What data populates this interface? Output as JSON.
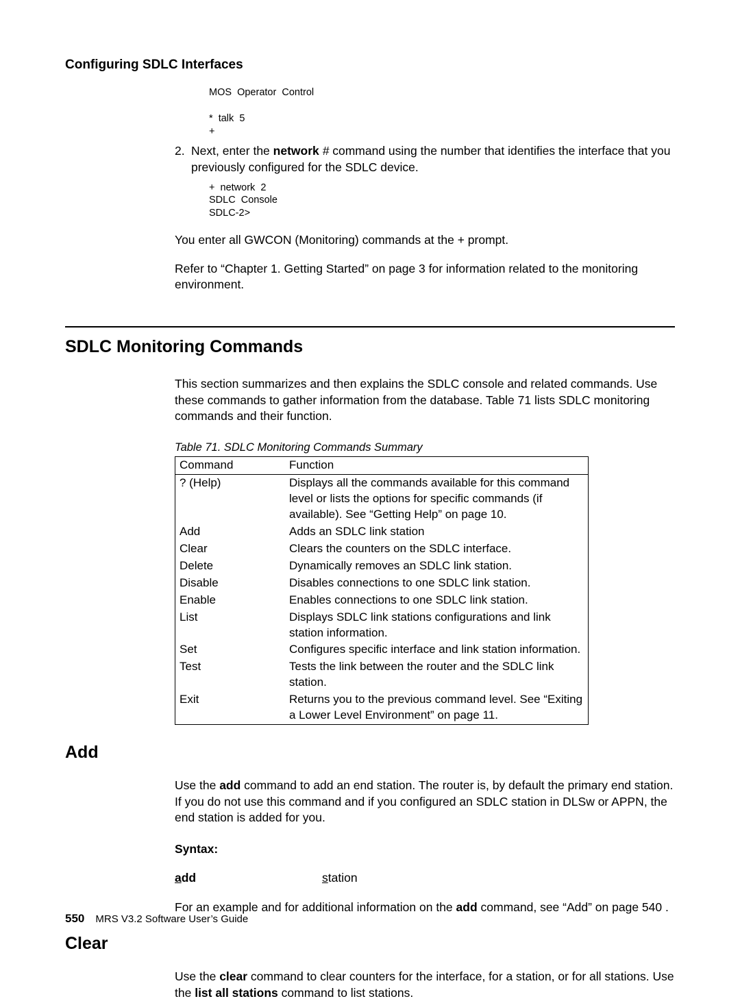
{
  "header": {
    "title": "Configuring SDLC Interfaces"
  },
  "intro": {
    "pre1": "MOS  Operator  Control\n\n*  talk  5\n+",
    "step_num": "2.",
    "step_text_a": "Next, enter the ",
    "step_bold": "network",
    "step_italic": " #",
    "step_text_b": " command using the number that identifies the interface that you previously configured for the SDLC device.",
    "pre2": "+  network  2\nSDLC  Console\nSDLC-2>",
    "p1": "You enter all GWCON (Monitoring) commands at the + prompt.",
    "p2": "Refer to “Chapter 1. Getting Started” on page 3 for information related to the monitoring environment."
  },
  "section1": {
    "title": "SDLC Monitoring Commands",
    "intro": "This section summarizes and then explains the SDLC console and related commands. Use these commands to gather information from the database. Table 71  lists SDLC monitoring commands and their function.",
    "table_caption": "Table 71. SDLC Monitoring Commands Summary",
    "header_cmd": "Command",
    "header_fn": "Function",
    "rows": [
      {
        "cmd": "? (Help)",
        "fn": "Displays all the commands available for this command level or lists the options for specific commands (if available). See “Getting Help” on page 10."
      },
      {
        "cmd": "Add",
        "fn": "Adds an SDLC link station"
      },
      {
        "cmd": "Clear",
        "fn": "Clears the counters on the SDLC interface."
      },
      {
        "cmd": "Delete",
        "fn": "Dynamically removes an SDLC link station."
      },
      {
        "cmd": "Disable",
        "fn": "Disables connections to one SDLC link station."
      },
      {
        "cmd": "Enable",
        "fn": "Enables connections to one SDLC link station."
      },
      {
        "cmd": "List",
        "fn": "Displays SDLC link stations configurations and link station information."
      },
      {
        "cmd": "Set",
        "fn": "Configures specific interface and link station information."
      },
      {
        "cmd": "Test",
        "fn": "Tests the link between the router and the SDLC link station."
      },
      {
        "cmd": "Exit",
        "fn": "Returns you to the previous command level. See “Exiting a Lower Level Environment” on page 11."
      }
    ]
  },
  "add": {
    "title": "Add",
    "p1_a": "Use the ",
    "p1_bold": "add",
    "p1_b": " command to add an end station. The router is, by default the primary end station. If you do not use this command and if you configured an SDLC station in DLSw or APPN, the end station is added for you.",
    "syntax_label": "Syntax:",
    "syntax_cmd_ul": "a",
    "syntax_cmd_rest": "dd",
    "syntax_arg_ul": "s",
    "syntax_arg_rest": "tation",
    "p2_a": "For an example and for additional information on the ",
    "p2_bold": "add",
    "p2_b": " command, see “Add” on page 540 ."
  },
  "clear": {
    "title": "Clear",
    "p1_a": "Use the ",
    "p1_bold1": "clear",
    "p1_b": " command to clear counters for the interface, for a station, or for all stations. Use the ",
    "p1_bold2": "list all stations",
    "p1_c": " command to list stations."
  },
  "footer": {
    "page": "550",
    "text": "MRS V3.2 Software User’s Guide"
  }
}
